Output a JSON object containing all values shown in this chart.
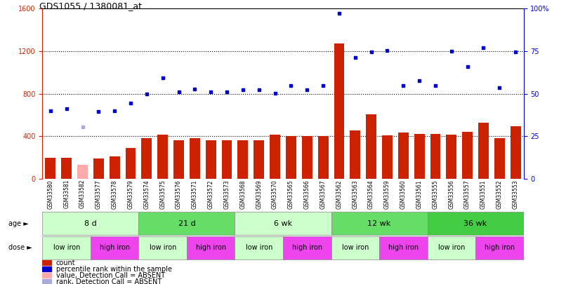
{
  "title": "GDS1055 / 1380081_at",
  "samples": [
    "GSM33580",
    "GSM33581",
    "GSM33582",
    "GSM33577",
    "GSM33578",
    "GSM33579",
    "GSM33574",
    "GSM33575",
    "GSM33576",
    "GSM33571",
    "GSM33572",
    "GSM33573",
    "GSM33568",
    "GSM33569",
    "GSM33570",
    "GSM33565",
    "GSM33566",
    "GSM33567",
    "GSM33562",
    "GSM33563",
    "GSM33564",
    "GSM33559",
    "GSM33560",
    "GSM33561",
    "GSM33555",
    "GSM33556",
    "GSM33557",
    "GSM33551",
    "GSM33552",
    "GSM33553"
  ],
  "counts": [
    200,
    200,
    130,
    190,
    210,
    290,
    380,
    415,
    365,
    385,
    365,
    365,
    365,
    365,
    415,
    405,
    405,
    405,
    1270,
    455,
    610,
    410,
    435,
    420,
    420,
    415,
    440,
    530,
    380,
    495
  ],
  "absent_mask": [
    false,
    false,
    true,
    false,
    false,
    false,
    false,
    false,
    false,
    false,
    false,
    false,
    false,
    false,
    false,
    false,
    false,
    false,
    false,
    false,
    false,
    false,
    false,
    false,
    false,
    false,
    false,
    false,
    false,
    false
  ],
  "pct_left": [
    640,
    660,
    490,
    630,
    640,
    710,
    800,
    950,
    815,
    845,
    820,
    820,
    840,
    840,
    805,
    875,
    840,
    875,
    1555,
    1140,
    1195,
    1205,
    875,
    920,
    875,
    1200,
    1055,
    1235,
    855,
    1190
  ],
  "ages": [
    {
      "label": "8 d",
      "start": 0,
      "end": 5,
      "color": "#ccffcc"
    },
    {
      "label": "21 d",
      "start": 6,
      "end": 11,
      "color": "#66dd66"
    },
    {
      "label": "6 wk",
      "start": 12,
      "end": 17,
      "color": "#ccffcc"
    },
    {
      "label": "12 wk",
      "start": 18,
      "end": 23,
      "color": "#66dd66"
    },
    {
      "label": "36 wk",
      "start": 24,
      "end": 29,
      "color": "#44cc44"
    }
  ],
  "doses": [
    {
      "label": "low iron",
      "start": 0,
      "end": 2,
      "color": "#ccffcc"
    },
    {
      "label": "high iron",
      "start": 3,
      "end": 5,
      "color": "#ee44ee"
    },
    {
      "label": "low iron",
      "start": 6,
      "end": 8,
      "color": "#ccffcc"
    },
    {
      "label": "high iron",
      "start": 9,
      "end": 11,
      "color": "#ee44ee"
    },
    {
      "label": "low iron",
      "start": 12,
      "end": 14,
      "color": "#ccffcc"
    },
    {
      "label": "high iron",
      "start": 15,
      "end": 17,
      "color": "#ee44ee"
    },
    {
      "label": "low iron",
      "start": 18,
      "end": 20,
      "color": "#ccffcc"
    },
    {
      "label": "high iron",
      "start": 21,
      "end": 23,
      "color": "#ee44ee"
    },
    {
      "label": "low iron",
      "start": 24,
      "end": 26,
      "color": "#ccffcc"
    },
    {
      "label": "high iron",
      "start": 27,
      "end": 29,
      "color": "#ee44ee"
    }
  ],
  "bar_color": "#cc2200",
  "absent_bar_color": "#ffaaaa",
  "dot_color": "#0000cc",
  "absent_dot_color": "#aaaadd",
  "ylim_left": [
    0,
    1600
  ],
  "yticks_left": [
    0,
    400,
    800,
    1200,
    1600
  ],
  "yticks_right": [
    0,
    25,
    50,
    75,
    100
  ]
}
